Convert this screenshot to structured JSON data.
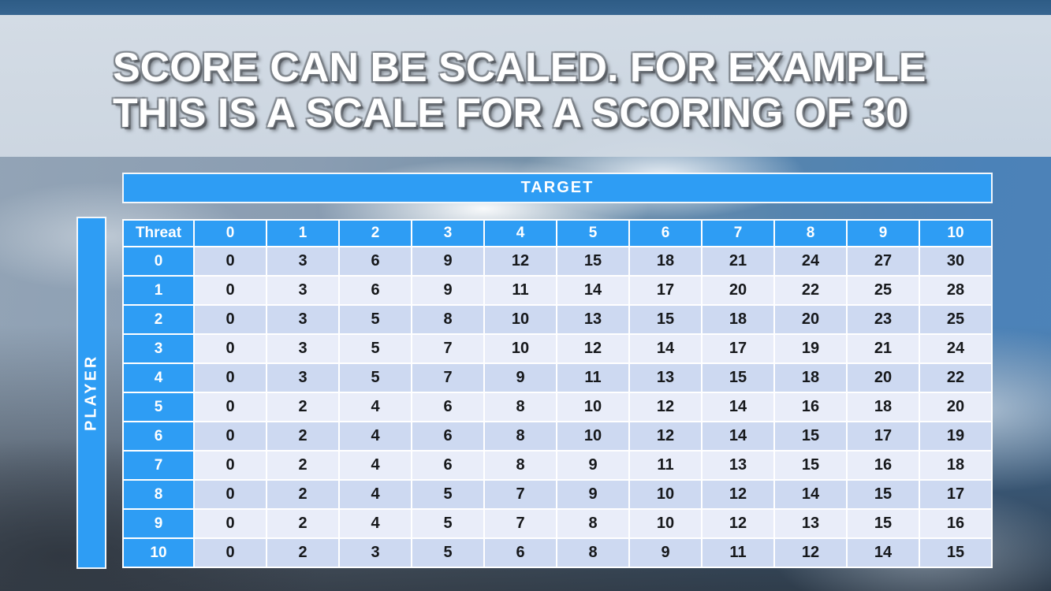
{
  "slide": {
    "title_line1": "SCORE CAN BE SCALED. FOR EXAMPLE",
    "title_line2": "THIS IS A SCALE FOR A SCORING OF 30"
  },
  "matrix": {
    "top_axis_label": "TARGET",
    "left_axis_label": "PLAYER",
    "corner_label": "Threat",
    "column_headers": [
      "0",
      "1",
      "2",
      "3",
      "4",
      "5",
      "6",
      "7",
      "8",
      "9",
      "10"
    ],
    "row_headers": [
      "0",
      "1",
      "2",
      "3",
      "4",
      "5",
      "6",
      "7",
      "8",
      "9",
      "10"
    ],
    "rows": [
      [
        0,
        3,
        6,
        9,
        12,
        15,
        18,
        21,
        24,
        27,
        30
      ],
      [
        0,
        3,
        6,
        9,
        11,
        14,
        17,
        20,
        22,
        25,
        28
      ],
      [
        0,
        3,
        5,
        8,
        10,
        13,
        15,
        18,
        20,
        23,
        25
      ],
      [
        0,
        3,
        5,
        7,
        10,
        12,
        14,
        17,
        19,
        21,
        24
      ],
      [
        0,
        3,
        5,
        7,
        9,
        11,
        13,
        15,
        18,
        20,
        22
      ],
      [
        0,
        2,
        4,
        6,
        8,
        10,
        12,
        14,
        16,
        18,
        20
      ],
      [
        0,
        2,
        4,
        6,
        8,
        10,
        12,
        14,
        15,
        17,
        19
      ],
      [
        0,
        2,
        4,
        6,
        8,
        9,
        11,
        13,
        15,
        16,
        18
      ],
      [
        0,
        2,
        4,
        5,
        7,
        9,
        10,
        12,
        14,
        15,
        17
      ],
      [
        0,
        2,
        4,
        5,
        7,
        8,
        10,
        12,
        13,
        15,
        16
      ],
      [
        0,
        2,
        3,
        5,
        6,
        8,
        9,
        11,
        12,
        14,
        15
      ]
    ]
  },
  "colors": {
    "header_blue": "#2E9DF4",
    "header_text": "#FFFFFF",
    "row_even": "#CDD9F1",
    "row_odd": "#E9EDF9",
    "cell_text": "#16181B"
  }
}
